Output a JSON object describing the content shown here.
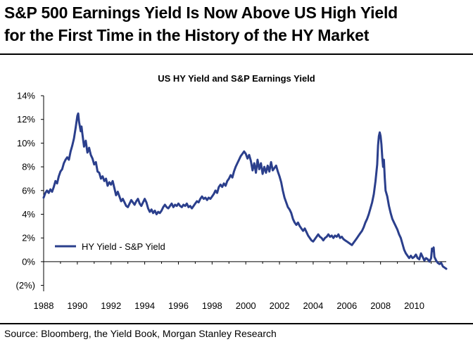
{
  "headline": {
    "line1": "S&P 500 Earnings Yield Is Now Above US High Yield",
    "line2": "for the First Time in the History of the HY Market"
  },
  "source": "Source: Bloomberg, the Yield Book, Morgan Stanley Research",
  "colors": {
    "series": "#2B3F8C",
    "axis": "#000000"
  },
  "chart_data": {
    "type": "line",
    "title": "US HY Yield and S&P Earnings Yield",
    "xlabel": "",
    "ylabel": "",
    "xlim": [
      1988,
      2011.9
    ],
    "ylim": [
      -2.5,
      14
    ],
    "x_ticks": [
      1988,
      1990,
      1992,
      1994,
      1996,
      1998,
      2000,
      2002,
      2004,
      2006,
      2008,
      2010
    ],
    "y_ticks": [
      {
        "value": 14,
        "label": "14%"
      },
      {
        "value": 12,
        "label": "12%"
      },
      {
        "value": 10,
        "label": "10%"
      },
      {
        "value": 8,
        "label": "8%"
      },
      {
        "value": 6,
        "label": "6%"
      },
      {
        "value": 4,
        "label": "4%"
      },
      {
        "value": 2,
        "label": "2%"
      },
      {
        "value": 0,
        "label": "0%"
      },
      {
        "value": -2,
        "label": "(2%)"
      }
    ],
    "grid": false,
    "legend_position": "bottom-left",
    "series": [
      {
        "name": "HY Yield - S&P Yield",
        "points": [
          [
            1988.0,
            5.4
          ],
          [
            1988.1,
            5.8
          ],
          [
            1988.2,
            6.0
          ],
          [
            1988.3,
            5.8
          ],
          [
            1988.4,
            6.1
          ],
          [
            1988.5,
            5.9
          ],
          [
            1988.6,
            6.3
          ],
          [
            1988.7,
            6.8
          ],
          [
            1988.8,
            6.6
          ],
          [
            1988.9,
            7.2
          ],
          [
            1989.0,
            7.6
          ],
          [
            1989.1,
            7.8
          ],
          [
            1989.2,
            8.3
          ],
          [
            1989.3,
            8.6
          ],
          [
            1989.4,
            8.8
          ],
          [
            1989.5,
            8.6
          ],
          [
            1989.6,
            9.3
          ],
          [
            1989.7,
            9.8
          ],
          [
            1989.8,
            10.4
          ],
          [
            1989.9,
            11.3
          ],
          [
            1990.0,
            12.3
          ],
          [
            1990.05,
            12.5
          ],
          [
            1990.1,
            11.8
          ],
          [
            1990.2,
            11.0
          ],
          [
            1990.25,
            11.4
          ],
          [
            1990.3,
            10.8
          ],
          [
            1990.4,
            9.7
          ],
          [
            1990.5,
            10.2
          ],
          [
            1990.6,
            9.2
          ],
          [
            1990.7,
            9.6
          ],
          [
            1990.8,
            9.0
          ],
          [
            1990.9,
            8.7
          ],
          [
            1991.0,
            8.2
          ],
          [
            1991.1,
            8.4
          ],
          [
            1991.2,
            7.6
          ],
          [
            1991.3,
            7.5
          ],
          [
            1991.4,
            7.0
          ],
          [
            1991.5,
            7.2
          ],
          [
            1991.6,
            6.8
          ],
          [
            1991.7,
            7.0
          ],
          [
            1991.8,
            6.4
          ],
          [
            1991.9,
            6.7
          ],
          [
            1992.0,
            6.5
          ],
          [
            1992.1,
            6.8
          ],
          [
            1992.2,
            6.2
          ],
          [
            1992.3,
            5.6
          ],
          [
            1992.4,
            5.9
          ],
          [
            1992.5,
            5.5
          ],
          [
            1992.6,
            5.1
          ],
          [
            1992.7,
            5.3
          ],
          [
            1992.8,
            5.0
          ],
          [
            1992.9,
            4.7
          ],
          [
            1993.0,
            4.6
          ],
          [
            1993.1,
            4.9
          ],
          [
            1993.2,
            5.2
          ],
          [
            1993.3,
            5.0
          ],
          [
            1993.4,
            4.8
          ],
          [
            1993.5,
            5.1
          ],
          [
            1993.6,
            5.3
          ],
          [
            1993.7,
            4.9
          ],
          [
            1993.8,
            4.7
          ],
          [
            1993.9,
            5.0
          ],
          [
            1994.0,
            5.3
          ],
          [
            1994.1,
            5.0
          ],
          [
            1994.2,
            4.5
          ],
          [
            1994.3,
            4.2
          ],
          [
            1994.4,
            4.4
          ],
          [
            1994.5,
            4.1
          ],
          [
            1994.6,
            4.3
          ],
          [
            1994.7,
            4.0
          ],
          [
            1994.8,
            4.2
          ],
          [
            1994.9,
            4.1
          ],
          [
            1995.0,
            4.3
          ],
          [
            1995.1,
            4.6
          ],
          [
            1995.2,
            4.8
          ],
          [
            1995.3,
            4.6
          ],
          [
            1995.4,
            4.5
          ],
          [
            1995.5,
            4.7
          ],
          [
            1995.6,
            4.9
          ],
          [
            1995.7,
            4.6
          ],
          [
            1995.8,
            4.8
          ],
          [
            1995.9,
            4.7
          ],
          [
            1996.0,
            4.9
          ],
          [
            1996.1,
            4.7
          ],
          [
            1996.2,
            4.6
          ],
          [
            1996.3,
            4.8
          ],
          [
            1996.4,
            4.7
          ],
          [
            1996.5,
            4.9
          ],
          [
            1996.6,
            4.6
          ],
          [
            1996.7,
            4.7
          ],
          [
            1996.8,
            4.5
          ],
          [
            1996.9,
            4.7
          ],
          [
            1997.0,
            4.9
          ],
          [
            1997.1,
            5.1
          ],
          [
            1997.2,
            5.0
          ],
          [
            1997.3,
            5.3
          ],
          [
            1997.4,
            5.5
          ],
          [
            1997.5,
            5.3
          ],
          [
            1997.6,
            5.4
          ],
          [
            1997.7,
            5.2
          ],
          [
            1997.8,
            5.4
          ],
          [
            1997.9,
            5.3
          ],
          [
            1998.0,
            5.5
          ],
          [
            1998.1,
            5.7
          ],
          [
            1998.2,
            6.0
          ],
          [
            1998.3,
            5.8
          ],
          [
            1998.4,
            6.3
          ],
          [
            1998.5,
            6.5
          ],
          [
            1998.6,
            6.3
          ],
          [
            1998.7,
            6.6
          ],
          [
            1998.8,
            6.4
          ],
          [
            1998.9,
            6.8
          ],
          [
            1999.0,
            7.0
          ],
          [
            1999.1,
            7.3
          ],
          [
            1999.2,
            7.1
          ],
          [
            1999.3,
            7.6
          ],
          [
            1999.4,
            8.0
          ],
          [
            1999.5,
            8.3
          ],
          [
            1999.6,
            8.6
          ],
          [
            1999.7,
            8.9
          ],
          [
            1999.8,
            9.1
          ],
          [
            1999.9,
            9.3
          ],
          [
            2000.0,
            9.1
          ],
          [
            2000.1,
            8.7
          ],
          [
            2000.2,
            9.0
          ],
          [
            2000.3,
            8.5
          ],
          [
            2000.4,
            7.7
          ],
          [
            2000.5,
            8.3
          ],
          [
            2000.6,
            7.5
          ],
          [
            2000.7,
            8.6
          ],
          [
            2000.8,
            7.8
          ],
          [
            2000.9,
            8.3
          ],
          [
            2001.0,
            7.4
          ],
          [
            2001.1,
            8.0
          ],
          [
            2001.2,
            7.5
          ],
          [
            2001.3,
            8.1
          ],
          [
            2001.4,
            7.6
          ],
          [
            2001.5,
            8.4
          ],
          [
            2001.6,
            7.7
          ],
          [
            2001.7,
            7.9
          ],
          [
            2001.8,
            8.1
          ],
          [
            2001.9,
            7.6
          ],
          [
            2002.0,
            7.2
          ],
          [
            2002.1,
            6.7
          ],
          [
            2002.2,
            6.0
          ],
          [
            2002.3,
            5.4
          ],
          [
            2002.4,
            5.0
          ],
          [
            2002.5,
            4.6
          ],
          [
            2002.6,
            4.4
          ],
          [
            2002.7,
            4.1
          ],
          [
            2002.8,
            3.6
          ],
          [
            2002.9,
            3.3
          ],
          [
            2003.0,
            3.1
          ],
          [
            2003.1,
            3.3
          ],
          [
            2003.2,
            3.0
          ],
          [
            2003.3,
            2.8
          ],
          [
            2003.4,
            2.6
          ],
          [
            2003.5,
            2.8
          ],
          [
            2003.6,
            2.5
          ],
          [
            2003.7,
            2.2
          ],
          [
            2003.8,
            2.0
          ],
          [
            2003.9,
            1.8
          ],
          [
            2004.0,
            1.7
          ],
          [
            2004.1,
            1.9
          ],
          [
            2004.2,
            2.1
          ],
          [
            2004.3,
            2.3
          ],
          [
            2004.4,
            2.1
          ],
          [
            2004.5,
            2.0
          ],
          [
            2004.6,
            1.8
          ],
          [
            2004.7,
            2.0
          ],
          [
            2004.8,
            2.1
          ],
          [
            2004.9,
            2.3
          ],
          [
            2005.0,
            2.1
          ],
          [
            2005.1,
            2.2
          ],
          [
            2005.2,
            2.0
          ],
          [
            2005.3,
            2.2
          ],
          [
            2005.4,
            2.1
          ],
          [
            2005.5,
            2.3
          ],
          [
            2005.6,
            2.0
          ],
          [
            2005.7,
            2.1
          ],
          [
            2005.8,
            1.9
          ],
          [
            2005.9,
            1.8
          ],
          [
            2006.0,
            1.7
          ],
          [
            2006.1,
            1.6
          ],
          [
            2006.2,
            1.5
          ],
          [
            2006.3,
            1.4
          ],
          [
            2006.4,
            1.6
          ],
          [
            2006.5,
            1.8
          ],
          [
            2006.6,
            2.0
          ],
          [
            2006.7,
            2.2
          ],
          [
            2006.8,
            2.4
          ],
          [
            2006.9,
            2.6
          ],
          [
            2007.0,
            2.9
          ],
          [
            2007.1,
            3.3
          ],
          [
            2007.2,
            3.6
          ],
          [
            2007.3,
            4.0
          ],
          [
            2007.4,
            4.5
          ],
          [
            2007.5,
            5.0
          ],
          [
            2007.6,
            5.7
          ],
          [
            2007.7,
            6.8
          ],
          [
            2007.8,
            8.2
          ],
          [
            2007.85,
            9.8
          ],
          [
            2007.9,
            10.6
          ],
          [
            2007.95,
            10.9
          ],
          [
            2008.0,
            10.6
          ],
          [
            2008.05,
            9.9
          ],
          [
            2008.1,
            8.8
          ],
          [
            2008.15,
            8.0
          ],
          [
            2008.2,
            8.6
          ],
          [
            2008.25,
            7.1
          ],
          [
            2008.3,
            6.0
          ],
          [
            2008.4,
            5.5
          ],
          [
            2008.5,
            4.7
          ],
          [
            2008.6,
            4.1
          ],
          [
            2008.7,
            3.6
          ],
          [
            2008.8,
            3.3
          ],
          [
            2008.9,
            3.0
          ],
          [
            2009.0,
            2.7
          ],
          [
            2009.1,
            2.3
          ],
          [
            2009.2,
            2.0
          ],
          [
            2009.3,
            1.5
          ],
          [
            2009.4,
            1.0
          ],
          [
            2009.5,
            0.7
          ],
          [
            2009.6,
            0.5
          ],
          [
            2009.7,
            0.3
          ],
          [
            2009.8,
            0.5
          ],
          [
            2009.9,
            0.3
          ],
          [
            2010.0,
            0.4
          ],
          [
            2010.1,
            0.6
          ],
          [
            2010.2,
            0.3
          ],
          [
            2010.3,
            0.2
          ],
          [
            2010.4,
            0.7
          ],
          [
            2010.5,
            0.4
          ],
          [
            2010.6,
            0.1
          ],
          [
            2010.7,
            0.3
          ],
          [
            2010.8,
            0.2
          ],
          [
            2010.9,
            0.0
          ],
          [
            2011.0,
            0.3
          ],
          [
            2011.05,
            1.1
          ],
          [
            2011.1,
            0.9
          ],
          [
            2011.15,
            1.2
          ],
          [
            2011.2,
            0.4
          ],
          [
            2011.3,
            0.1
          ],
          [
            2011.4,
            -0.1
          ],
          [
            2011.5,
            -0.2
          ],
          [
            2011.6,
            -0.1
          ],
          [
            2011.7,
            -0.4
          ],
          [
            2011.8,
            -0.5
          ],
          [
            2011.9,
            -0.6
          ]
        ]
      }
    ]
  }
}
